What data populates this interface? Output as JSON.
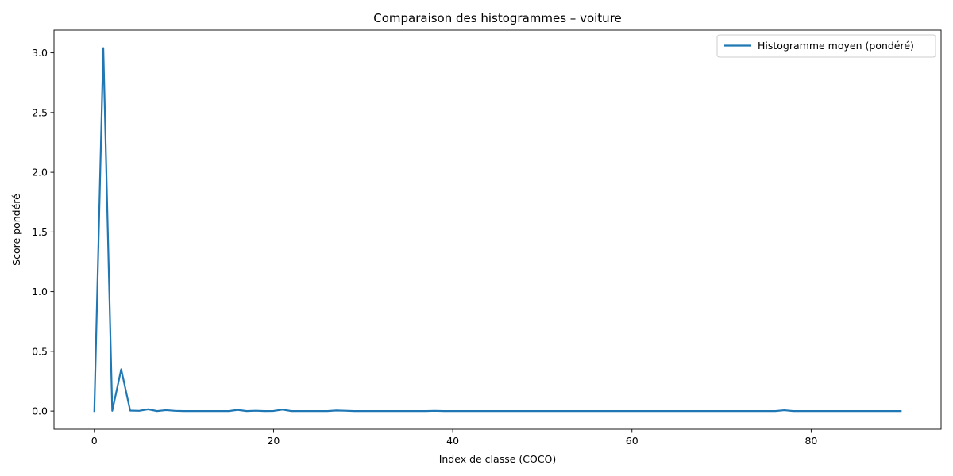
{
  "chart_data": {
    "type": "line",
    "title": "Comparaison des histogrammes – voiture",
    "xlabel": "Index de classe (COCO)",
    "ylabel": "Score pondéré",
    "xlim": [
      -4.5,
      94.5
    ],
    "ylim": [
      -0.152,
      3.19
    ],
    "xticks": [
      0,
      20,
      40,
      60,
      80
    ],
    "xtick_labels": [
      "0",
      "20",
      "40",
      "60",
      "80"
    ],
    "yticks": [
      0.0,
      0.5,
      1.0,
      1.5,
      2.0,
      2.5,
      3.0
    ],
    "ytick_labels": [
      "0.0",
      "0.5",
      "1.0",
      "1.5",
      "2.0",
      "2.5",
      "3.0"
    ],
    "grid": false,
    "legend_position": "top-right",
    "series": [
      {
        "name": "Histogramme moyen (pondéré)",
        "color": "#1f77b4",
        "x": [
          0,
          1,
          2,
          3,
          4,
          5,
          6,
          7,
          8,
          9,
          10,
          11,
          12,
          13,
          14,
          15,
          16,
          17,
          18,
          19,
          20,
          21,
          22,
          23,
          24,
          25,
          26,
          27,
          28,
          29,
          30,
          31,
          32,
          33,
          34,
          35,
          36,
          37,
          38,
          39,
          40,
          41,
          42,
          43,
          44,
          45,
          46,
          47,
          48,
          49,
          50,
          51,
          52,
          53,
          54,
          55,
          56,
          57,
          58,
          59,
          60,
          61,
          62,
          63,
          64,
          65,
          66,
          67,
          68,
          69,
          70,
          71,
          72,
          73,
          74,
          75,
          76,
          77,
          78,
          79,
          80,
          81,
          82,
          83,
          84,
          85,
          86,
          87,
          88,
          89,
          90
        ],
        "values": [
          0.0,
          3.04,
          0.002,
          0.35,
          0.004,
          0.002,
          0.015,
          0.0,
          0.008,
          0.002,
          0.0,
          0.0,
          0.0,
          0.0,
          0.0,
          0.0,
          0.01,
          0.0,
          0.003,
          0.0,
          0.001,
          0.012,
          0.0,
          0.0,
          0.0,
          0.0,
          0.0,
          0.005,
          0.003,
          0.0,
          0.0,
          0.0,
          0.0,
          0.0,
          0.0,
          0.0,
          0.0,
          0.0,
          0.002,
          0.0,
          0.0,
          0.0,
          0.0,
          0.0,
          0.0,
          0.0,
          0.0,
          0.0,
          0.0,
          0.0,
          0.0,
          0.0,
          0.0,
          0.0,
          0.0,
          0.0,
          0.0,
          0.0,
          0.0,
          0.0,
          0.0,
          0.0,
          0.0,
          0.0,
          0.0,
          0.0,
          0.0,
          0.0,
          0.0,
          0.0,
          0.0,
          0.0,
          0.0,
          0.0,
          0.0,
          0.0,
          0.0,
          0.007,
          0.0,
          0.0,
          0.0,
          0.0,
          0.0,
          0.0,
          0.0,
          0.0,
          0.0,
          0.0,
          0.0,
          0.0,
          0.0
        ]
      }
    ]
  }
}
